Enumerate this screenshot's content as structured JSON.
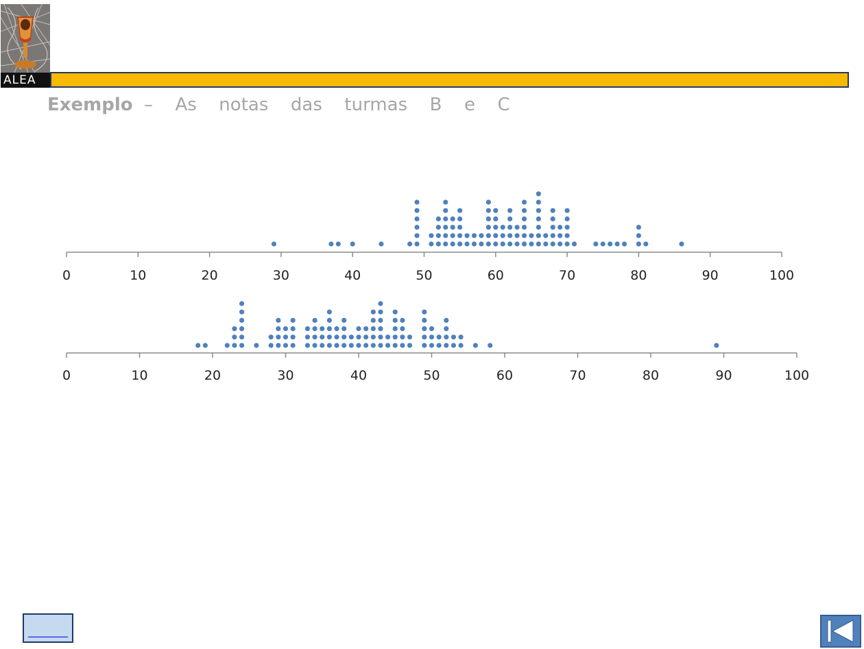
{
  "logo": {
    "text": "ALEA",
    "icon": "chalice-logo"
  },
  "title": {
    "bold": "Exemplo",
    "rest": " –  As  notas  das  turmas  B  e  C"
  },
  "nav": {
    "back_icon": "blank-button",
    "first_icon": "first-slide-icon"
  },
  "colors": {
    "accent": "#f8b900",
    "border": "#1f3864",
    "dot": "#4f81bd"
  },
  "chart_data": [
    {
      "type": "dot-plot",
      "title": "",
      "xlabel": "",
      "ylabel": "",
      "xlim": [
        0,
        100
      ],
      "ticks": [
        0,
        10,
        20,
        30,
        40,
        50,
        60,
        70,
        80,
        90,
        100
      ],
      "points": [
        {
          "x": 29,
          "count": 1
        },
        {
          "x": 37,
          "count": 1
        },
        {
          "x": 38,
          "count": 1
        },
        {
          "x": 40,
          "count": 1
        },
        {
          "x": 44,
          "count": 1
        },
        {
          "x": 48,
          "count": 1
        },
        {
          "x": 49,
          "count": 6
        },
        {
          "x": 51,
          "count": 2
        },
        {
          "x": 52,
          "count": 4
        },
        {
          "x": 53,
          "count": 6
        },
        {
          "x": 54,
          "count": 4
        },
        {
          "x": 55,
          "count": 5
        },
        {
          "x": 56,
          "count": 2
        },
        {
          "x": 57,
          "count": 2
        },
        {
          "x": 58,
          "count": 2
        },
        {
          "x": 59,
          "count": 6
        },
        {
          "x": 60,
          "count": 5
        },
        {
          "x": 61,
          "count": 3
        },
        {
          "x": 62,
          "count": 5
        },
        {
          "x": 63,
          "count": 3
        },
        {
          "x": 64,
          "count": 6
        },
        {
          "x": 65,
          "count": 2
        },
        {
          "x": 66,
          "count": 7
        },
        {
          "x": 67,
          "count": 2
        },
        {
          "x": 68,
          "count": 5
        },
        {
          "x": 69,
          "count": 3
        },
        {
          "x": 70,
          "count": 5
        },
        {
          "x": 71,
          "count": 1
        },
        {
          "x": 74,
          "count": 1
        },
        {
          "x": 75,
          "count": 1
        },
        {
          "x": 76,
          "count": 1
        },
        {
          "x": 77,
          "count": 1
        },
        {
          "x": 78,
          "count": 1
        },
        {
          "x": 80,
          "count": 3
        },
        {
          "x": 81,
          "count": 1
        },
        {
          "x": 86,
          "count": 1
        }
      ]
    },
    {
      "type": "dot-plot",
      "title": "",
      "xlabel": "",
      "ylabel": "",
      "xlim": [
        0,
        100
      ],
      "ticks": [
        0,
        10,
        20,
        30,
        40,
        50,
        60,
        70,
        80,
        90,
        100
      ],
      "points": [
        {
          "x": 18,
          "count": 1
        },
        {
          "x": 19,
          "count": 1
        },
        {
          "x": 22,
          "count": 1
        },
        {
          "x": 23,
          "count": 3
        },
        {
          "x": 24,
          "count": 6
        },
        {
          "x": 26,
          "count": 1
        },
        {
          "x": 28,
          "count": 2
        },
        {
          "x": 29,
          "count": 4
        },
        {
          "x": 30,
          "count": 3
        },
        {
          "x": 31,
          "count": 4
        },
        {
          "x": 33,
          "count": 3
        },
        {
          "x": 34,
          "count": 4
        },
        {
          "x": 35,
          "count": 3
        },
        {
          "x": 36,
          "count": 5
        },
        {
          "x": 37,
          "count": 3
        },
        {
          "x": 38,
          "count": 4
        },
        {
          "x": 39,
          "count": 2
        },
        {
          "x": 40,
          "count": 3
        },
        {
          "x": 41,
          "count": 3
        },
        {
          "x": 42,
          "count": 5
        },
        {
          "x": 43,
          "count": 6
        },
        {
          "x": 44,
          "count": 2
        },
        {
          "x": 45,
          "count": 5
        },
        {
          "x": 46,
          "count": 4
        },
        {
          "x": 47,
          "count": 2
        },
        {
          "x": 49,
          "count": 5
        },
        {
          "x": 50,
          "count": 3
        },
        {
          "x": 51,
          "count": 2
        },
        {
          "x": 52,
          "count": 4
        },
        {
          "x": 53,
          "count": 2
        },
        {
          "x": 54,
          "count": 2
        },
        {
          "x": 56,
          "count": 1
        },
        {
          "x": 58,
          "count": 1
        },
        {
          "x": 89,
          "count": 1
        }
      ]
    }
  ]
}
